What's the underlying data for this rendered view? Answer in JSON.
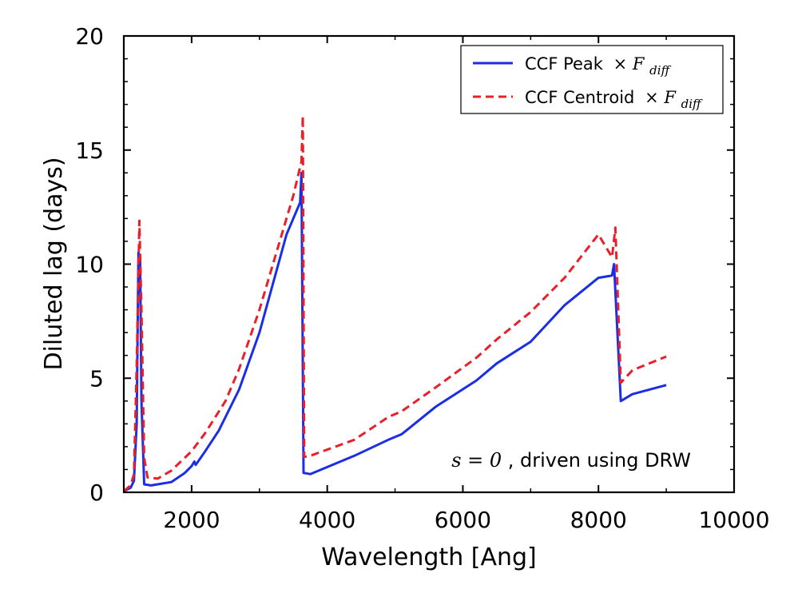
{
  "chart_data": {
    "type": "line",
    "xlabel": "Wavelength [Ang]",
    "ylabel": "Diluted lag (days)",
    "xlim": [
      1000,
      10000
    ],
    "ylim": [
      0,
      20
    ],
    "xticks": [
      2000,
      4000,
      6000,
      8000,
      10000
    ],
    "yticks": [
      0,
      5,
      10,
      15,
      20
    ],
    "legend_position": "top-right",
    "annotation": {
      "math": "s = 0",
      "text": ", driven using DRW"
    },
    "series": [
      {
        "name": "CCF Peak",
        "name_math": "× F",
        "name_sub": "diff",
        "color": "#1a2ee6",
        "style": "solid",
        "points": [
          [
            1000,
            0.05
          ],
          [
            1100,
            0.2
          ],
          [
            1150,
            0.5
          ],
          [
            1190,
            3.0
          ],
          [
            1215,
            10.5
          ],
          [
            1240,
            10.3
          ],
          [
            1260,
            4.0
          ],
          [
            1300,
            0.35
          ],
          [
            1400,
            0.3
          ],
          [
            1500,
            0.35
          ],
          [
            1700,
            0.45
          ],
          [
            1900,
            0.85
          ],
          [
            2000,
            1.15
          ],
          [
            2040,
            1.35
          ],
          [
            2060,
            1.2
          ],
          [
            2200,
            1.8
          ],
          [
            2400,
            2.7
          ],
          [
            2700,
            4.5
          ],
          [
            3000,
            7.0
          ],
          [
            3400,
            11.3
          ],
          [
            3600,
            12.7
          ],
          [
            3620,
            14.0
          ],
          [
            3650,
            0.85
          ],
          [
            3750,
            0.8
          ],
          [
            4400,
            1.6
          ],
          [
            4900,
            2.3
          ],
          [
            5100,
            2.55
          ],
          [
            5600,
            3.75
          ],
          [
            6200,
            4.9
          ],
          [
            6500,
            5.65
          ],
          [
            7000,
            6.6
          ],
          [
            7500,
            8.2
          ],
          [
            8000,
            9.4
          ],
          [
            8200,
            9.5
          ],
          [
            8230,
            10.0
          ],
          [
            8330,
            4.0
          ],
          [
            8500,
            4.3
          ],
          [
            9000,
            4.7
          ]
        ]
      },
      {
        "name": "CCF Centroid",
        "name_math": "× F",
        "name_sub": "diff",
        "color": "#e8202a",
        "style": "dashed",
        "points": [
          [
            1000,
            0.05
          ],
          [
            1100,
            0.3
          ],
          [
            1150,
            0.8
          ],
          [
            1190,
            5.5
          ],
          [
            1230,
            11.9
          ],
          [
            1260,
            8.0
          ],
          [
            1300,
            1.5
          ],
          [
            1350,
            0.65
          ],
          [
            1500,
            0.6
          ],
          [
            1700,
            0.95
          ],
          [
            2000,
            1.8
          ],
          [
            2200,
            2.6
          ],
          [
            2500,
            4.0
          ],
          [
            2700,
            5.4
          ],
          [
            3000,
            8.0
          ],
          [
            3300,
            11.0
          ],
          [
            3500,
            13.0
          ],
          [
            3620,
            14.5
          ],
          [
            3640,
            16.5
          ],
          [
            3660,
            1.55
          ],
          [
            3750,
            1.6
          ],
          [
            4400,
            2.3
          ],
          [
            4900,
            3.3
          ],
          [
            5100,
            3.55
          ],
          [
            5600,
            4.6
          ],
          [
            6200,
            5.9
          ],
          [
            6500,
            6.7
          ],
          [
            7000,
            7.9
          ],
          [
            7500,
            9.4
          ],
          [
            8000,
            11.3
          ],
          [
            8200,
            10.3
          ],
          [
            8250,
            11.6
          ],
          [
            8330,
            4.8
          ],
          [
            8500,
            5.35
          ],
          [
            9000,
            5.95
          ]
        ]
      }
    ]
  }
}
